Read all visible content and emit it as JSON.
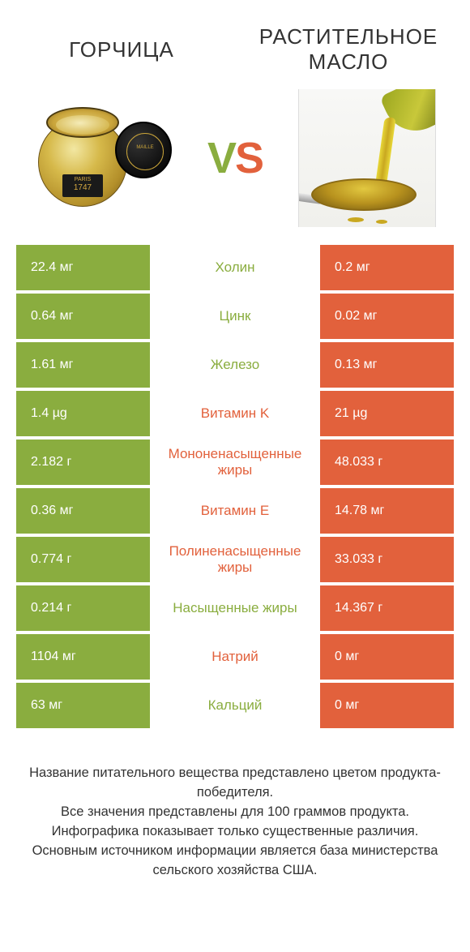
{
  "colors": {
    "green": "#8aad3f",
    "orange": "#e2613c",
    "bg": "#ffffff",
    "text": "#333333"
  },
  "header": {
    "left_title": "ГОРЧИЦА",
    "right_title": "РАСТИТЕЛЬНОЕ МАСЛО",
    "vs_v": "V",
    "vs_s": "S",
    "jar_year": "1747"
  },
  "rows": [
    {
      "left": "22.4 мг",
      "mid": "Холин",
      "right": "0.2 мг",
      "winner": "left"
    },
    {
      "left": "0.64 мг",
      "mid": "Цинк",
      "right": "0.02 мг",
      "winner": "left"
    },
    {
      "left": "1.61 мг",
      "mid": "Железо",
      "right": "0.13 мг",
      "winner": "left"
    },
    {
      "left": "1.4 µg",
      "mid": "Витамин K",
      "right": "21 µg",
      "winner": "right"
    },
    {
      "left": "2.182 г",
      "mid": "Мононенасыщенные жиры",
      "right": "48.033 г",
      "winner": "right"
    },
    {
      "left": "0.36 мг",
      "mid": "Витамин E",
      "right": "14.78 мг",
      "winner": "right"
    },
    {
      "left": "0.774 г",
      "mid": "Полиненасыщенные жиры",
      "right": "33.033 г",
      "winner": "right"
    },
    {
      "left": "0.214 г",
      "mid": "Насыщенные жиры",
      "right": "14.367 г",
      "winner": "left"
    },
    {
      "left": "1104 мг",
      "mid": "Натрий",
      "right": "0 мг",
      "winner": "right"
    },
    {
      "left": "63 мг",
      "mid": "Кальций",
      "right": "0 мг",
      "winner": "left"
    }
  ],
  "footer_lines": [
    "Название питательного вещества представлено цветом продукта-победителя.",
    "Все значения представлены для 100 граммов продукта.",
    "Инфографика показывает только существенные различия.",
    "Основным источником информации является база министерства сельского хозяйства США."
  ]
}
